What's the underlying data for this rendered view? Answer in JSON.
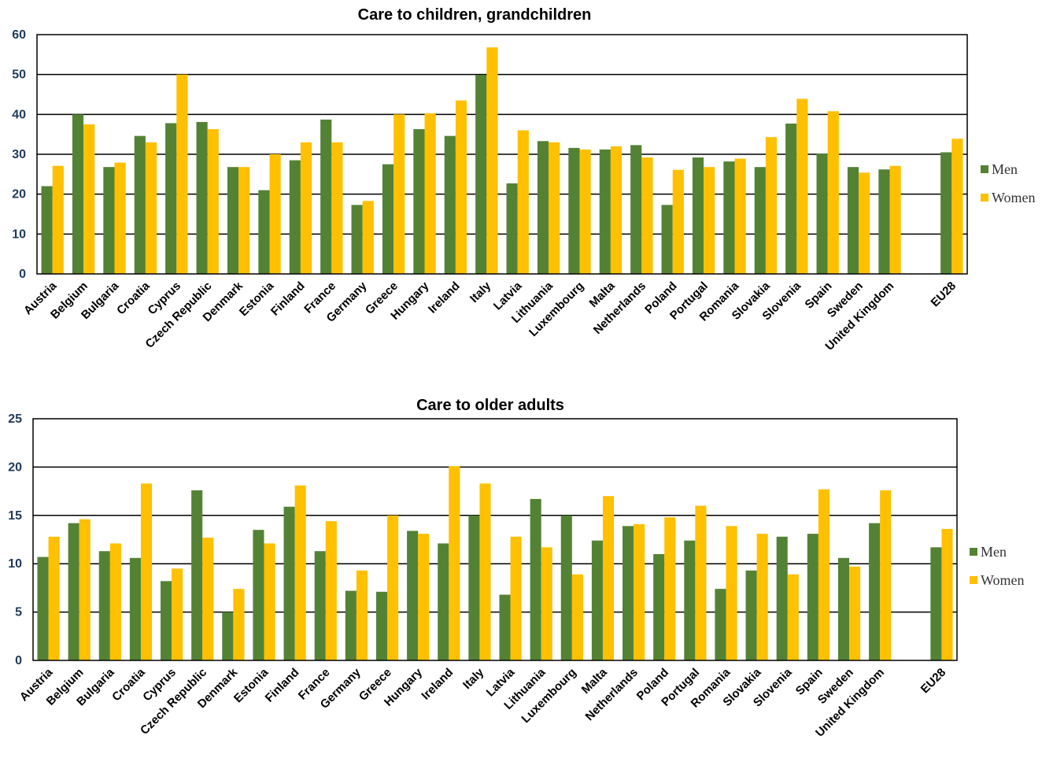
{
  "colors": {
    "men": "#548235",
    "women": "#ffc000",
    "grid": "#000000"
  },
  "chart_data": [
    {
      "type": "bar",
      "title": "Care to children, grandchildren",
      "xlabel": "",
      "ylabel": "",
      "ylim": [
        0,
        60
      ],
      "yticks": [
        0,
        10,
        20,
        30,
        40,
        50,
        60
      ],
      "grid": true,
      "legend_position": "right",
      "categories": [
        "Austria",
        "Belgium",
        "Bulgaria",
        "Croatia",
        "Cyprus",
        "Czech Republic",
        "Denmark",
        "Estonia",
        "Finland",
        "France",
        "Germany",
        "Greece",
        "Hungary",
        "Ireland",
        "Italy",
        "Latvia",
        "Lithuania",
        "Luxembourg",
        "Malta",
        "Netherlands",
        "Poland",
        "Portugal",
        "Romania",
        "Slovakia",
        "Slovenia",
        "Spain",
        "Sweden",
        "United Kingdom",
        "",
        "EU28"
      ],
      "series": [
        {
          "name": "Men",
          "values": [
            22.0,
            40.0,
            26.8,
            34.6,
            37.8,
            38.1,
            26.8,
            21.0,
            28.5,
            38.7,
            17.3,
            27.5,
            36.3,
            34.6,
            49.9,
            22.7,
            33.3,
            31.6,
            31.2,
            32.3,
            17.3,
            29.2,
            28.2,
            26.8,
            37.7,
            30.2,
            26.8,
            26.2,
            null,
            30.5
          ]
        },
        {
          "name": "Women",
          "values": [
            27.1,
            37.5,
            27.9,
            33.0,
            50.0,
            36.3,
            26.8,
            30.0,
            33.0,
            33.0,
            18.3,
            40.0,
            40.3,
            43.5,
            56.8,
            36.0,
            33.0,
            31.2,
            32.0,
            29.2,
            26.1,
            26.8,
            28.9,
            34.3,
            43.9,
            40.8,
            25.4,
            27.1,
            null,
            33.9
          ]
        }
      ]
    },
    {
      "type": "bar",
      "title": "Care to older adults",
      "xlabel": "",
      "ylabel": "",
      "ylim": [
        0,
        25
      ],
      "yticks": [
        0,
        5,
        10,
        15,
        20,
        25
      ],
      "grid": true,
      "legend_position": "right",
      "categories": [
        "Austria",
        "Belgium",
        "Bulgaria",
        "Croatia",
        "Cyprus",
        "Czech Republic",
        "Denmark",
        "Estonia",
        "Finland",
        "France",
        "Germany",
        "Greece",
        "Hungary",
        "Ireland",
        "Italy",
        "Latvia",
        "Lithuania",
        "Luxembourg",
        "Malta",
        "Netherlands",
        "Poland",
        "Portugal",
        "Romania",
        "Slovakia",
        "Slovenia",
        "Spain",
        "Sweden",
        "United Kingdom",
        "",
        "EU28"
      ],
      "series": [
        {
          "name": "Men",
          "values": [
            10.7,
            14.2,
            11.3,
            10.6,
            8.2,
            17.6,
            5.0,
            13.5,
            15.9,
            11.3,
            7.2,
            7.1,
            13.4,
            12.1,
            15.0,
            6.8,
            16.7,
            15.0,
            12.4,
            13.9,
            11.0,
            12.4,
            7.4,
            9.3,
            12.8,
            13.1,
            10.6,
            14.2,
            null,
            11.7
          ]
        },
        {
          "name": "Women",
          "values": [
            12.8,
            14.6,
            12.1,
            18.3,
            9.5,
            12.7,
            7.4,
            12.1,
            18.1,
            14.4,
            9.3,
            15.0,
            13.1,
            20.1,
            18.3,
            12.8,
            11.7,
            8.9,
            17.0,
            14.1,
            14.8,
            16.0,
            13.9,
            13.1,
            8.9,
            17.7,
            9.7,
            17.6,
            null,
            13.6
          ]
        }
      ]
    }
  ]
}
